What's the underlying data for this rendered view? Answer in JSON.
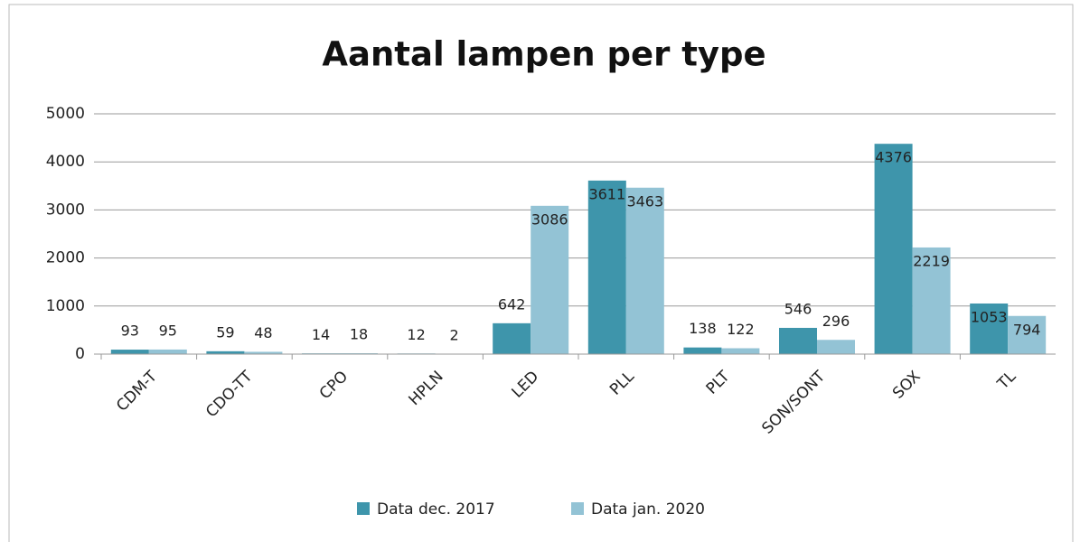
{
  "chart_data": {
    "type": "bar",
    "title": "Aantal lampen per type",
    "categories": [
      "CDM-T",
      "CDO-TT",
      "CPO",
      "HPLN",
      "LED",
      "PLL",
      "PLT",
      "SON/SONT",
      "SOX",
      "TL"
    ],
    "series": [
      {
        "name": "Data dec. 2017",
        "color": "#3e95ab",
        "values": [
          93,
          59,
          14,
          12,
          642,
          3611,
          138,
          546,
          4376,
          1053
        ]
      },
      {
        "name": "Data jan. 2020",
        "color": "#93c3d5",
        "values": [
          95,
          48,
          18,
          2,
          3086,
          3463,
          122,
          296,
          2219,
          794
        ]
      }
    ],
    "ylim": [
      0,
      5000
    ],
    "yticks": [
      0,
      1000,
      2000,
      3000,
      4000,
      5000
    ],
    "grid": true,
    "legend": "bottom"
  }
}
